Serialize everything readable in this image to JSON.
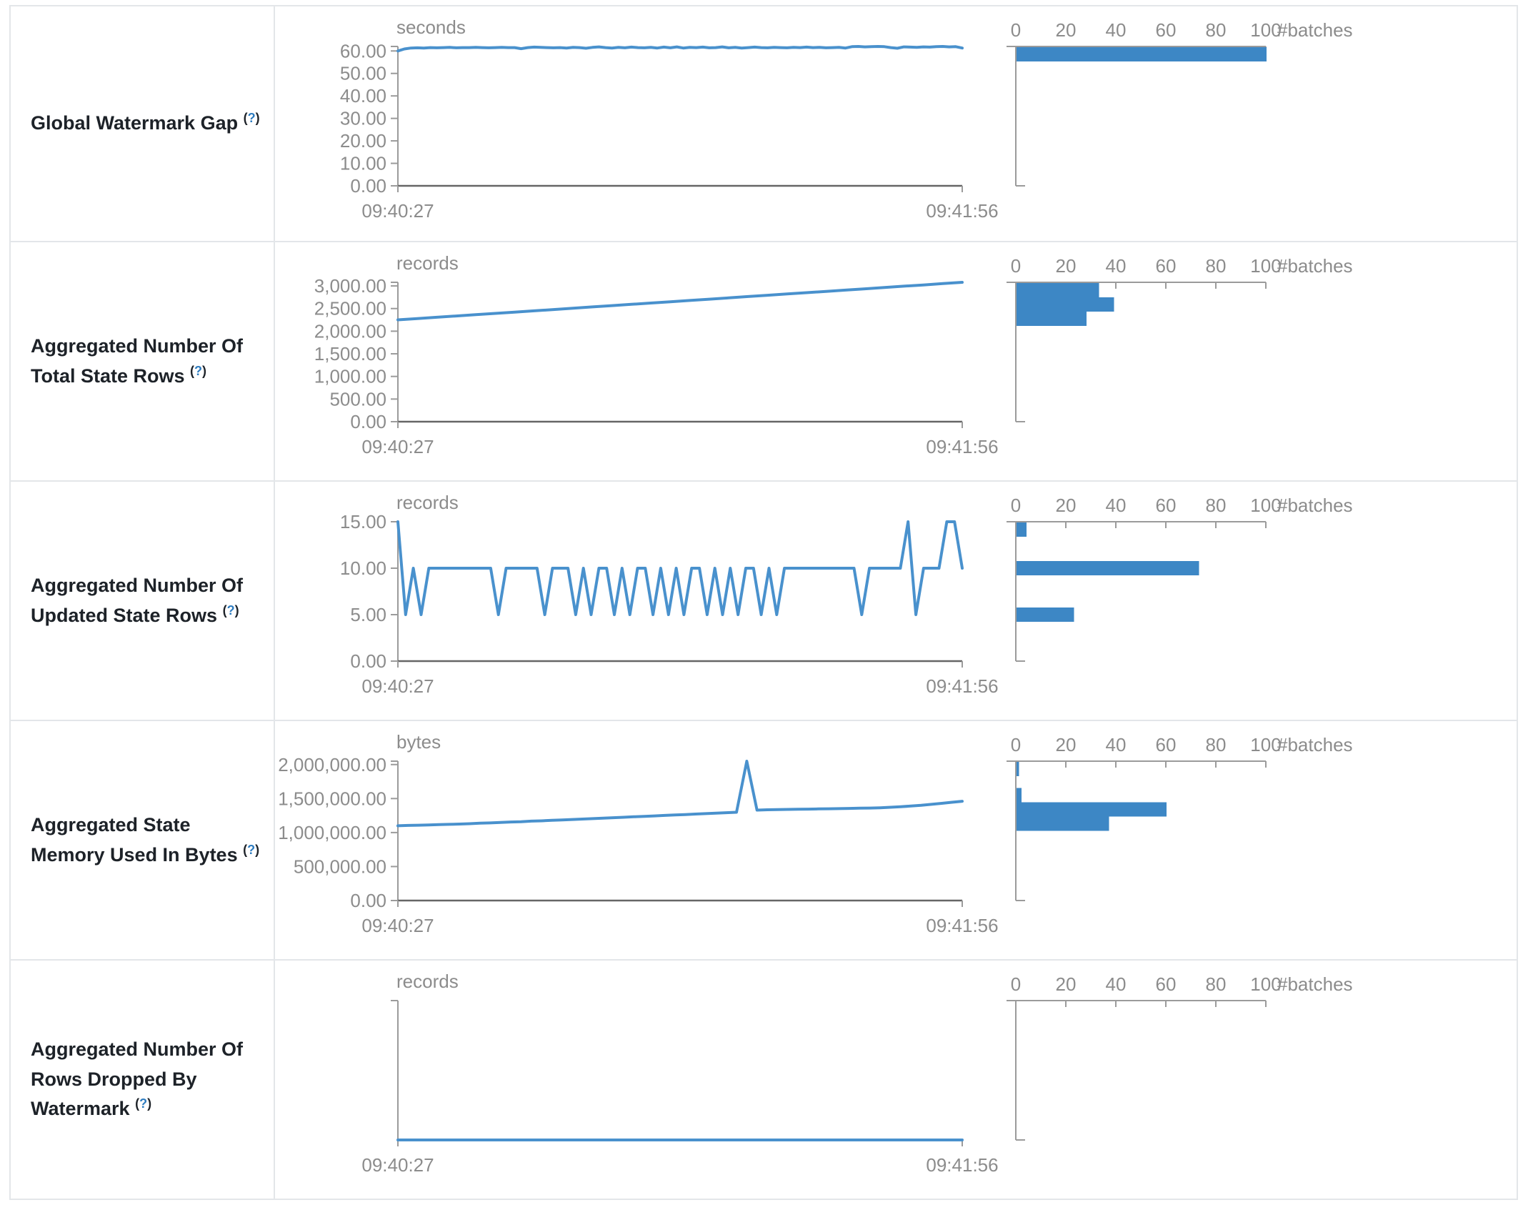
{
  "help": {
    "open": "(",
    "q": "?",
    "close": ")"
  },
  "colors": {
    "accent_bar": "#3d87c5",
    "accent_line": "#4991cd",
    "axis": "#9b9b9b",
    "baseline": "#666666",
    "tick_text": "#8c8c8c",
    "label_text": "#1d2228",
    "link": "#2e7cc0",
    "border": "#e3e6e9"
  },
  "rows": [
    {
      "label": "Global Watermark Gap",
      "timeline_chart": 0,
      "histogram_chart": 1
    },
    {
      "label": "Aggregated Number Of Total State Rows",
      "timeline_chart": 2,
      "histogram_chart": 3
    },
    {
      "label": "Aggregated Number Of Updated State Rows",
      "timeline_chart": 4,
      "histogram_chart": 5
    },
    {
      "label": "Aggregated State Memory Used In Bytes",
      "timeline_chart": 6,
      "histogram_chart": 7
    },
    {
      "label": "Aggregated Number Of Rows Dropped By Watermark",
      "timeline_chart": 8,
      "histogram_chart": 9
    }
  ],
  "chart_data": [
    {
      "type": "line",
      "metric": "Global Watermark Gap",
      "unit": "seconds",
      "x_tick_labels": [
        "09:40:27",
        "09:41:56"
      ],
      "ylim": [
        0,
        62
      ],
      "yticks": [
        {
          "value": 0,
          "label": "0.00"
        },
        {
          "value": 10,
          "label": "10.00"
        },
        {
          "value": 20,
          "label": "20.00"
        },
        {
          "value": 30,
          "label": "30.00"
        },
        {
          "value": 40,
          "label": "40.00"
        },
        {
          "value": 50,
          "label": "50.00"
        },
        {
          "value": 60,
          "label": "60.00"
        }
      ],
      "values": [
        60.0,
        60.9,
        61.3,
        61.4,
        61.3,
        61.5,
        61.4,
        61.5,
        61.6,
        61.4,
        61.5,
        61.5,
        61.6,
        61.5,
        61.4,
        61.5,
        61.6,
        61.5,
        61.5,
        61.0,
        61.5,
        61.7,
        61.6,
        61.5,
        61.4,
        61.5,
        61.3,
        61.6,
        61.5,
        61.2,
        61.6,
        61.8,
        61.5,
        61.3,
        61.6,
        61.4,
        61.7,
        61.5,
        61.4,
        61.6,
        61.3,
        61.7,
        61.4,
        61.8,
        61.3,
        61.6,
        61.5,
        61.7,
        61.4,
        61.5,
        61.8,
        61.4,
        61.6,
        61.3,
        61.5,
        61.7,
        61.5,
        61.4,
        61.6,
        61.5,
        61.4,
        61.6,
        61.5,
        61.7,
        61.5,
        61.6,
        61.4,
        61.5,
        61.6,
        61.3,
        61.9,
        62.0,
        61.8,
        61.9,
        62.0,
        61.9,
        61.5,
        61.2,
        61.8,
        61.7,
        61.6,
        61.8,
        61.7,
        61.9,
        62.0,
        61.8,
        61.9,
        61.3
      ]
    },
    {
      "type": "bar",
      "metric": "Global Watermark Gap",
      "orientation": "horizontal",
      "xlabel": "#batches",
      "xticks": [
        0,
        20,
        40,
        60,
        80,
        100
      ],
      "xlim": [
        0,
        103
      ],
      "ylim": [
        0,
        62
      ],
      "bins": [
        {
          "y_center": 61.5,
          "count": 100
        }
      ]
    },
    {
      "type": "line",
      "metric": "Aggregated Number Of Total State Rows",
      "unit": "records",
      "x_tick_labels": [
        "09:40:27",
        "09:41:56"
      ],
      "ylim": [
        0,
        3080
      ],
      "yticks": [
        {
          "value": 0,
          "label": "0.00"
        },
        {
          "value": 500,
          "label": "500.00"
        },
        {
          "value": 1000,
          "label": "1,000.00"
        },
        {
          "value": 1500,
          "label": "1,500.00"
        },
        {
          "value": 2000,
          "label": "2,000.00"
        },
        {
          "value": 2500,
          "label": "2,500.00"
        },
        {
          "value": 3000,
          "label": "3,000.00"
        }
      ],
      "values": [
        2250,
        2279,
        2307,
        2336,
        2364,
        2393,
        2422,
        2450,
        2479,
        2508,
        2536,
        2565,
        2593,
        2622,
        2651,
        2679,
        2708,
        2736,
        2765,
        2794,
        2822,
        2851,
        2879,
        2908,
        2937,
        2965,
        2994,
        3022,
        3051,
        3080
      ]
    },
    {
      "type": "bar",
      "metric": "Aggregated Number Of Total State Rows",
      "orientation": "horizontal",
      "xlabel": "#batches",
      "xticks": [
        0,
        20,
        40,
        60,
        80,
        100
      ],
      "xlim": [
        0,
        103
      ],
      "ylim": [
        0,
        3080
      ],
      "bins": [
        {
          "y_center": 2920,
          "count": 33
        },
        {
          "y_center": 2650,
          "count": 39
        },
        {
          "y_center": 2390,
          "count": 28
        }
      ]
    },
    {
      "type": "line",
      "metric": "Aggregated Number Of Updated State Rows",
      "unit": "records",
      "x_tick_labels": [
        "09:40:27",
        "09:41:56"
      ],
      "ylim": [
        0,
        15
      ],
      "yticks": [
        {
          "value": 0,
          "label": "0.00"
        },
        {
          "value": 5,
          "label": "5.00"
        },
        {
          "value": 10,
          "label": "10.00"
        },
        {
          "value": 15,
          "label": "15.00"
        }
      ],
      "values": [
        15,
        5,
        10,
        5,
        10,
        10,
        10,
        10,
        10,
        10,
        10,
        10,
        10,
        5,
        10,
        10,
        10,
        10,
        10,
        5,
        10,
        10,
        10,
        5,
        10,
        5,
        10,
        10,
        5,
        10,
        5,
        10,
        10,
        5,
        10,
        5,
        10,
        5,
        10,
        10,
        5,
        10,
        5,
        10,
        5,
        10,
        10,
        5,
        10,
        5,
        10,
        10,
        10,
        10,
        10,
        10,
        10,
        10,
        10,
        10,
        5,
        10,
        10,
        10,
        10,
        10,
        15,
        5,
        10,
        10,
        10,
        15,
        15,
        10
      ]
    },
    {
      "type": "bar",
      "metric": "Aggregated Number Of Updated State Rows",
      "orientation": "horizontal",
      "xlabel": "#batches",
      "xticks": [
        0,
        20,
        40,
        60,
        80,
        100
      ],
      "xlim": [
        0,
        103
      ],
      "ylim": [
        0,
        15
      ],
      "bins": [
        {
          "y_center": 15,
          "count": 4
        },
        {
          "y_center": 10,
          "count": 73
        },
        {
          "y_center": 5,
          "count": 23
        }
      ]
    },
    {
      "type": "line",
      "metric": "Aggregated State Memory Used In Bytes",
      "unit": "bytes",
      "x_tick_labels": [
        "09:40:27",
        "09:41:56"
      ],
      "ylim": [
        0,
        2050000
      ],
      "yticks": [
        {
          "value": 0,
          "label": "0.00"
        },
        {
          "value": 500000,
          "label": "500,000.00"
        },
        {
          "value": 1000000,
          "label": "1,000,000.00"
        },
        {
          "value": 1500000,
          "label": "1,500,000.00"
        },
        {
          "value": 2000000,
          "label": "2,000,000.00"
        }
      ],
      "values": [
        1100000,
        1105000,
        1108000,
        1112000,
        1118000,
        1121000,
        1125000,
        1130000,
        1138000,
        1142000,
        1148000,
        1155000,
        1160000,
        1168000,
        1172000,
        1180000,
        1185000,
        1192000,
        1198000,
        1205000,
        1212000,
        1218000,
        1225000,
        1232000,
        1238000,
        1245000,
        1252000,
        1258000,
        1265000,
        1272000,
        1278000,
        1285000,
        1292000,
        1298000,
        2050000,
        1330000,
        1335000,
        1338000,
        1340000,
        1342000,
        1345000,
        1348000,
        1350000,
        1352000,
        1355000,
        1358000,
        1360000,
        1365000,
        1372000,
        1380000,
        1390000,
        1400000,
        1415000,
        1430000,
        1445000,
        1460000
      ]
    },
    {
      "type": "bar",
      "metric": "Aggregated State Memory Used In Bytes",
      "orientation": "horizontal",
      "xlabel": "#batches",
      "xticks": [
        0,
        20,
        40,
        60,
        80,
        100
      ],
      "xlim": [
        0,
        103
      ],
      "ylim": [
        0,
        2050000
      ],
      "bins": [
        {
          "y_center": 2050000,
          "count": 1
        },
        {
          "y_center": 1550000,
          "count": 2
        },
        {
          "y_center": 1340000,
          "count": 60
        },
        {
          "y_center": 1130000,
          "count": 37
        }
      ]
    },
    {
      "type": "line",
      "metric": "Aggregated Number Of Rows Dropped By Watermark",
      "unit": "records",
      "x_tick_labels": [
        "09:40:27",
        "09:41:56"
      ],
      "ylim": [
        0,
        1
      ],
      "yticks": [],
      "values": [
        0,
        0,
        0,
        0,
        0,
        0,
        0,
        0,
        0,
        0
      ]
    },
    {
      "type": "bar",
      "metric": "Aggregated Number Of Rows Dropped By Watermark",
      "orientation": "horizontal",
      "xlabel": "#batches",
      "xticks": [
        0,
        20,
        40,
        60,
        80,
        100
      ],
      "xlim": [
        0,
        103
      ],
      "ylim": [
        0,
        1
      ],
      "bins": []
    }
  ]
}
